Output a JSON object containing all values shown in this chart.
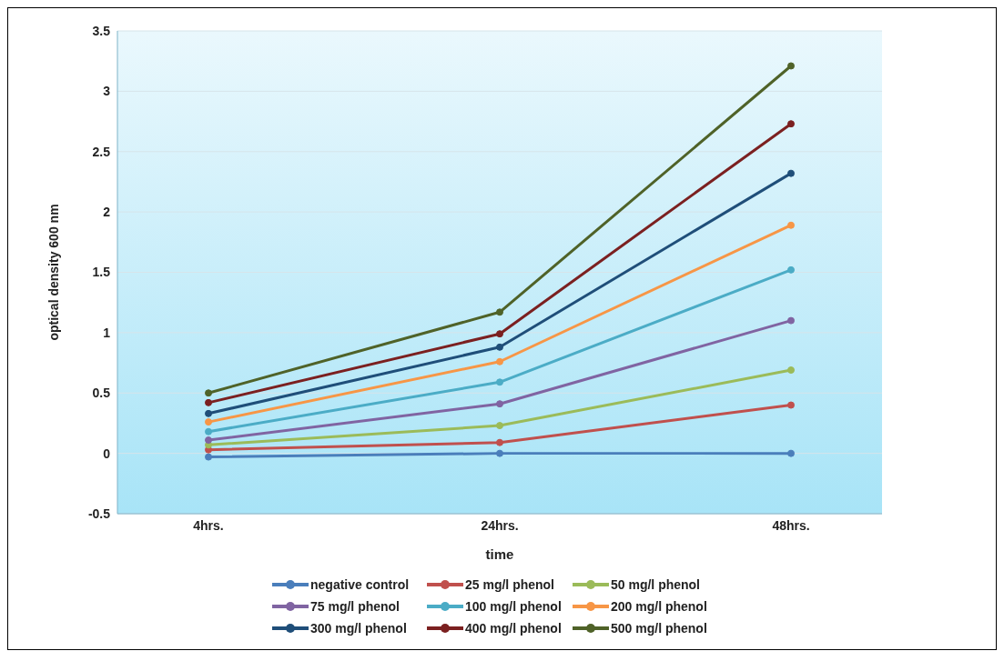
{
  "chart_data": {
    "type": "line",
    "xlabel": "time",
    "ylabel": "optical density 600 nm",
    "categories": [
      "4hrs.",
      "24hrs.",
      "48hrs."
    ],
    "ylim": [
      -0.5,
      3.5
    ],
    "yticks": [
      -0.5,
      0,
      0.5,
      1,
      1.5,
      2,
      2.5,
      3,
      3.5
    ],
    "grid": "y",
    "legend": "bottom",
    "marker": "circle",
    "line_style": "solid",
    "series": [
      {
        "name": "negative control",
        "color": "#4a7ebb",
        "values": [
          -0.03,
          0,
          0
        ]
      },
      {
        "name": "25 mg/l phenol",
        "color": "#c0504d",
        "values": [
          0.03,
          0.09,
          0.4
        ]
      },
      {
        "name": "50 mg/l phenol",
        "color": "#9bbb59",
        "values": [
          0.07,
          0.23,
          0.69
        ]
      },
      {
        "name": "75 mg/l phenol",
        "color": "#8064a2",
        "values": [
          0.11,
          0.41,
          1.1
        ]
      },
      {
        "name": "100 mg/l phenol",
        "color": "#4bacc6",
        "values": [
          0.18,
          0.59,
          1.52
        ]
      },
      {
        "name": "200 mg/l phenol",
        "color": "#f79646",
        "values": [
          0.26,
          0.76,
          1.89
        ]
      },
      {
        "name": "300 mg/l phenol",
        "color": "#1f4e79",
        "values": [
          0.33,
          0.88,
          2.32
        ]
      },
      {
        "name": "400 mg/l phenol",
        "color": "#7b2020",
        "values": [
          0.42,
          0.99,
          2.73
        ]
      },
      {
        "name": "500 mg/l phenol",
        "color": "#4f6228",
        "values": [
          0.5,
          1.17,
          3.21
        ]
      }
    ]
  }
}
